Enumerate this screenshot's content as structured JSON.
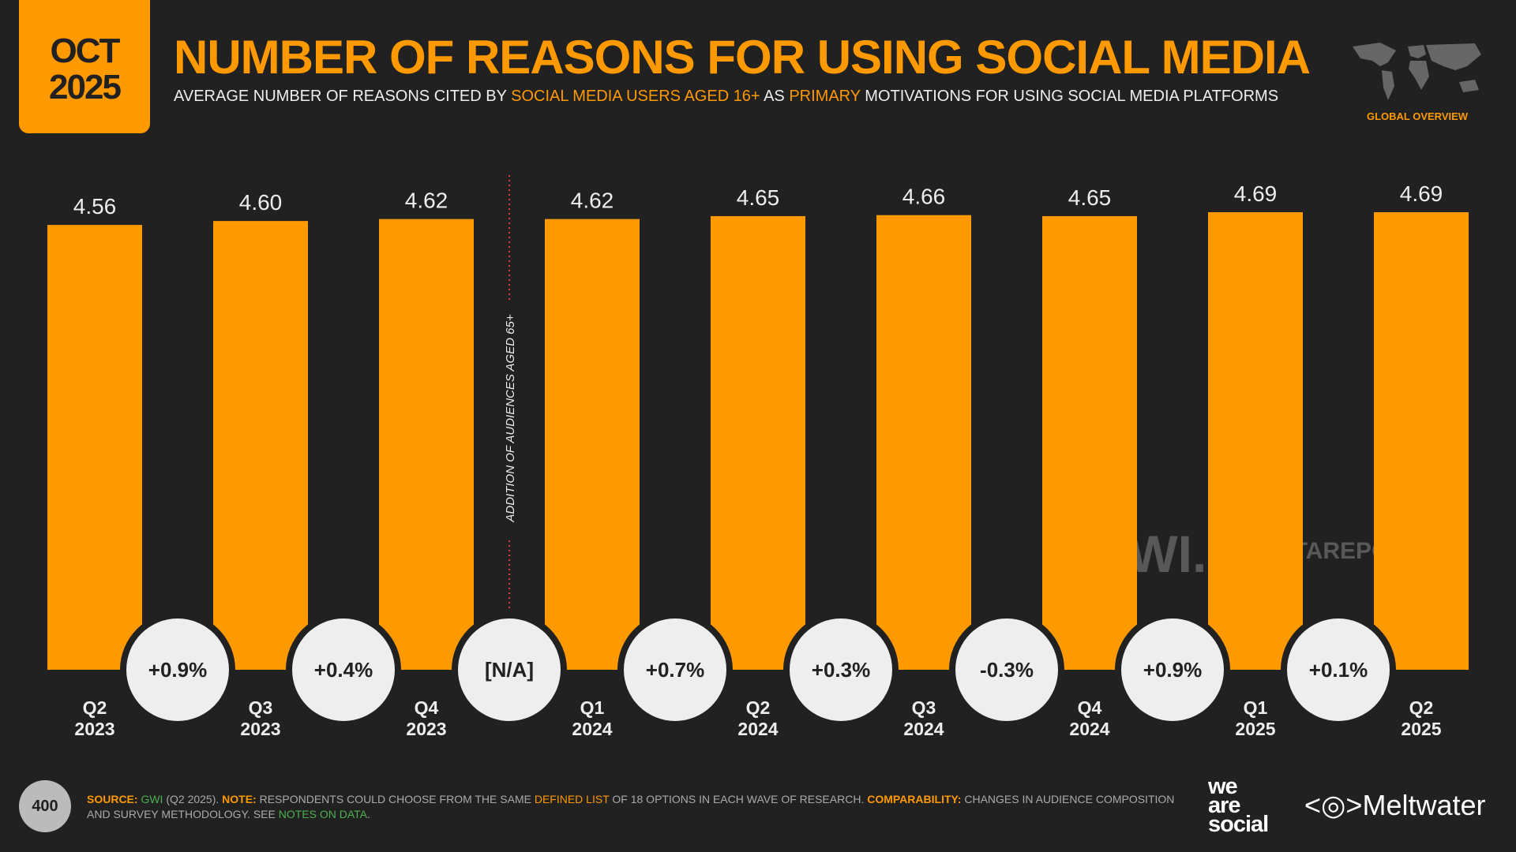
{
  "header": {
    "month": "OCT",
    "year": "2025",
    "title": "NUMBER OF REASONS FOR USING SOCIAL MEDIA",
    "subtitle_parts": [
      "AVERAGE NUMBER OF REASONS CITED BY ",
      "SOCIAL MEDIA USERS AGED 16+",
      " AS ",
      "PRIMARY",
      " MOTIVATIONS FOR USING SOCIAL MEDIA PLATFORMS"
    ],
    "region": "GLOBAL OVERVIEW"
  },
  "chart_data": {
    "type": "bar",
    "categories": [
      [
        "Q2",
        "2023"
      ],
      [
        "Q3",
        "2023"
      ],
      [
        "Q4",
        "2023"
      ],
      [
        "Q1",
        "2024"
      ],
      [
        "Q2",
        "2024"
      ],
      [
        "Q3",
        "2024"
      ],
      [
        "Q4",
        "2024"
      ],
      [
        "Q1",
        "2025"
      ],
      [
        "Q2",
        "2025"
      ]
    ],
    "values": [
      4.56,
      4.6,
      4.62,
      4.62,
      4.65,
      4.66,
      4.65,
      4.69,
      4.69
    ],
    "value_labels": [
      "4.56",
      "4.60",
      "4.62",
      "4.62",
      "4.65",
      "4.66",
      "4.65",
      "4.69",
      "4.69"
    ],
    "changes": [
      "+0.9%",
      "+0.4%",
      "[N/A]",
      "+0.7%",
      "+0.3%",
      "-0.3%",
      "+0.9%",
      "+0.1%"
    ],
    "annotation": "ADDITION OF AUDIENCES AGED 65+",
    "ylim": [
      0,
      4.69
    ],
    "bar_color": "#ff9900"
  },
  "watermarks": {
    "gwi": "GWI.",
    "datareportal": "DATAREPORTAL"
  },
  "footer": {
    "page": "400",
    "source_label": "SOURCE:",
    "source": "GWI",
    "source_rest": " (Q2 2025). ",
    "note_label": "NOTE:",
    "note_a": " RESPONDENTS COULD CHOOSE FROM THE SAME ",
    "note_link": "DEFINED LIST",
    "note_b": " OF 18 OPTIONS IN EACH WAVE OF RESEARCH. ",
    "comp_label": "COMPARABILITY:",
    "comp": " CHANGES IN AUDIENCE COMPOSITION AND SURVEY METHODOLOGY. SEE ",
    "notes_link": "NOTES ON DATA",
    "end": "."
  },
  "logos": {
    "we_are_social": [
      "we",
      "are",
      "social"
    ],
    "meltwater": "Meltwater"
  }
}
